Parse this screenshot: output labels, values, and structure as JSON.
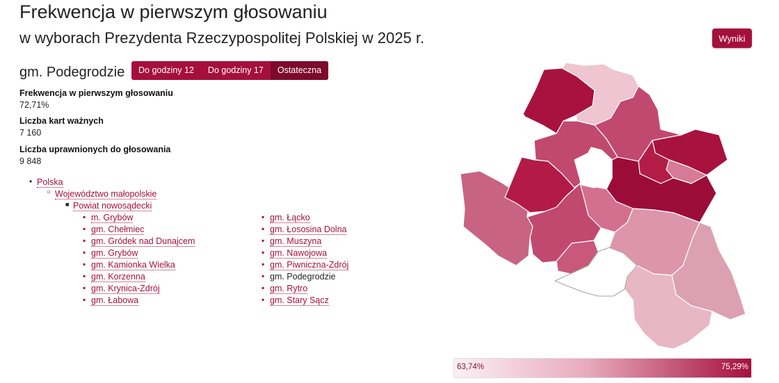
{
  "header": {
    "title": "Frekwencja w pierwszym głosowaniu",
    "subtitle": "w wyborach Prezydenta Rzeczypospolitej Polskiej w 2025 r.",
    "results_button": "Wyniki"
  },
  "region": {
    "name": "gm. Podegrodzie"
  },
  "tabs": [
    {
      "label": "Do godziny 12",
      "active": false
    },
    {
      "label": "Do godziny 17",
      "active": false
    },
    {
      "label": "Ostateczna",
      "active": true
    }
  ],
  "stats": [
    {
      "label": "Frekwencja w pierwszym głosowaniu",
      "value": "72,71%"
    },
    {
      "label": "Liczba kart ważnych",
      "value": "7 160"
    },
    {
      "label": "Liczba uprawnionych do głosowania",
      "value": "9 848"
    }
  ],
  "breadcrumb": {
    "country": "Polska",
    "voivodeship": "Województwo małopolskie",
    "county": "Powiat nowosądecki"
  },
  "municipalities": {
    "left": [
      "m. Grybów",
      "gm. Chełmiec",
      "gm. Gródek nad Dunajcem",
      "gm. Grybów",
      "gm. Kamionka Wielka",
      "gm. Korzenna",
      "gm. Krynica-Zdrój",
      "gm. Łabowa"
    ],
    "right": [
      "gm. Łącko",
      "gm. Łososina Dolna",
      "gm. Muszyna",
      "gm. Nawojowa",
      "gm. Piwniczna-Zdrój",
      "gm. Podegrodzie",
      "gm. Rytro",
      "gm. Stary Sącz"
    ],
    "current": "gm. Podegrodzie"
  },
  "legend": {
    "min": "63,74%",
    "max": "75,29%",
    "color_min": "#fbf0f4",
    "color_max": "#a50f3c"
  },
  "colors": {
    "accent": "#a50f3c",
    "accent_dark": "#7d0a2c"
  }
}
